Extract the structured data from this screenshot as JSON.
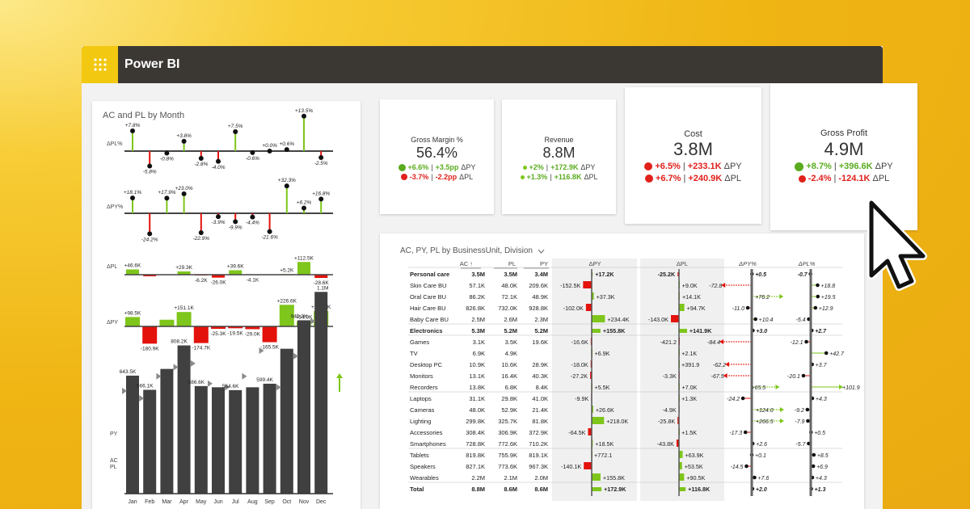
{
  "app": {
    "title": "Power BI",
    "menu_icon": "apps-grid-icon",
    "accent": "#f2c811"
  },
  "left_card": {
    "title": "AC and PL by Month"
  },
  "kpis": [
    {
      "title": "Gross Margin %",
      "value": "56.4%",
      "l1": [
        "+6.6%",
        "+3.5pp",
        "ΔPY"
      ],
      "l2": [
        "-3.7%",
        "-2.2pp",
        "ΔPL"
      ]
    },
    {
      "title": "Revenue",
      "value": "8.8M",
      "l1": [
        "+2%",
        "+172.9K",
        "ΔPY"
      ],
      "l2": [
        "+1.3%",
        "+116.8K",
        "ΔPL"
      ]
    },
    {
      "title": "Cost",
      "value": "3.8M",
      "l1": [
        "+6.5%",
        "+233.1K",
        "ΔPY"
      ],
      "l2": [
        "+6.7%",
        "+240.9K",
        "ΔPL"
      ]
    },
    {
      "title": "Gross Profit",
      "value": "4.9M",
      "l1": [
        "+8.7%",
        "+396.6K",
        "ΔPY"
      ],
      "l2": [
        "-2.4%",
        "-124.1K",
        "ΔPL"
      ]
    }
  ],
  "table": {
    "title": "AC, PY, PL by BusinessUnit, Division",
    "chevron": "chevron-down-icon",
    "headers": [
      "AC ↑",
      "PL",
      "PY",
      "ΔPY",
      "ΔPL",
      "ΔPY%",
      "ΔPL%"
    ],
    "rows": [
      {
        "n": "Personal care",
        "b": true,
        "ac": "3.5M",
        "pl": "3.5M",
        "py": "3.4M",
        "dpy": "+17.2K",
        "dpl": "-25.2K",
        "ppy": "+0.5",
        "ppl": "-0.7"
      },
      {
        "n": "Skin Care BU",
        "ac": "57.1K",
        "pl": "48.0K",
        "py": "209.6K",
        "dpy": "-152.5K",
        "dpl": "+9.0K",
        "ppy": "-72.8",
        "ppl": "+18.8"
      },
      {
        "n": "Oral Care BU",
        "ac": "86.2K",
        "pl": "72.1K",
        "py": "48.9K",
        "dpy": "+37.3K",
        "dpl": "+14.1K",
        "ppy": "+76.2",
        "ppl": "+19.5"
      },
      {
        "n": "Hair Care BU",
        "ac": "826.8K",
        "pl": "732.0K",
        "py": "928.8K",
        "dpy": "-102.0K",
        "dpl": "+94.7K",
        "ppy": "-11.0",
        "ppl": "+12.9"
      },
      {
        "n": "Baby Care BU",
        "ac": "2.5M",
        "pl": "2.6M",
        "py": "2.3M",
        "dpy": "+234.4K",
        "dpl": "-143.0K",
        "ppy": "+10.4",
        "ppl": "-5.4"
      },
      {
        "n": "Electronics",
        "b": true,
        "ac": "5.3M",
        "pl": "5.2M",
        "py": "5.2M",
        "dpy": "+155.8K",
        "dpl": "+141.9K",
        "ppy": "+3.0",
        "ppl": "+2.7"
      },
      {
        "n": "Games",
        "ac": "3.1K",
        "pl": "3.5K",
        "py": "19.6K",
        "dpy": "-16.6K",
        "dpl": "-421.2",
        "ppy": "-84.4",
        "ppl": "-12.1"
      },
      {
        "n": "TV",
        "ac": "6.9K",
        "pl": "4.9K",
        "py": "",
        "dpy": "+6.9K",
        "dpl": "+2.1K",
        "ppy": "",
        "ppl": "+42.7"
      },
      {
        "n": "Desktop PC",
        "ac": "10.9K",
        "pl": "10.6K",
        "py": "28.9K",
        "dpy": "-18.0K",
        "dpl": "+391.9",
        "ppy": "-62.2",
        "ppl": "+3.7"
      },
      {
        "n": "Monitors",
        "ac": "13.1K",
        "pl": "16.4K",
        "py": "40.3K",
        "dpy": "-27.2K",
        "dpl": "-3.3K",
        "ppy": "-67.5",
        "ppl": "-20.1"
      },
      {
        "n": "Recorders",
        "ac": "13.8K",
        "pl": "6.8K",
        "py": "8.4K",
        "dpy": "+5.5K",
        "dpl": "+7.0K",
        "ppy": "+65.5",
        "ppl": "+101.9"
      },
      {
        "n": "Laptops",
        "ac": "31.1K",
        "pl": "29.8K",
        "py": "41.0K",
        "dpy": "-9.9K",
        "dpl": "+1.3K",
        "ppy": "-24.2",
        "ppl": "+4.3"
      },
      {
        "n": "Cameras",
        "ac": "48.0K",
        "pl": "52.9K",
        "py": "21.4K",
        "dpy": "+26.6K",
        "dpl": "-4.9K",
        "ppy": "+124.0",
        "ppl": "-9.2"
      },
      {
        "n": "Lighting",
        "ac": "299.8K",
        "pl": "325.7K",
        "py": "81.8K",
        "dpy": "+218.0K",
        "dpl": "-25.8K",
        "ppy": "+266.5",
        "ppl": "-7.9"
      },
      {
        "n": "Accessories",
        "ac": "308.4K",
        "pl": "306.9K",
        "py": "372.9K",
        "dpy": "-64.5K",
        "dpl": "+1.5K",
        "ppy": "-17.3",
        "ppl": "+0.5"
      },
      {
        "n": "Smartphones",
        "ac": "728.8K",
        "pl": "772.6K",
        "py": "710.2K",
        "dpy": "+18.5K",
        "dpl": "-43.8K",
        "ppy": "+2.6",
        "ppl": "-5.7"
      },
      {
        "n": "Tablets",
        "ac": "819.8K",
        "pl": "755.9K",
        "py": "819.1K",
        "dpy": "+772.1",
        "dpl": "+63.9K",
        "ppy": "+0.1",
        "ppl": "+8.5"
      },
      {
        "n": "Speakers",
        "ac": "827.1K",
        "pl": "773.6K",
        "py": "967.3K",
        "dpy": "-140.1K",
        "dpl": "+53.5K",
        "ppy": "-14.5",
        "ppl": "+6.9"
      },
      {
        "n": "Wearables",
        "ac": "2.2M",
        "pl": "2.1M",
        "py": "2.0M",
        "dpy": "+155.8K",
        "dpl": "+90.5K",
        "ppy": "+7.6",
        "ppl": "+4.3"
      },
      {
        "n": "Total",
        "b": true,
        "ac": "8.8M",
        "pl": "8.6M",
        "py": "8.6M",
        "dpy": "+172.9K",
        "dpl": "+116.8K",
        "ppy": "+2.0",
        "ppl": "+1.3"
      }
    ]
  },
  "chart_data": [
    {
      "type": "lollipop",
      "ylabel": "ΔPL%",
      "categories": [
        "Jan",
        "Feb",
        "Mar",
        "Apr",
        "May",
        "Jun",
        "Jul",
        "Aug",
        "Sep",
        "Oct",
        "Nov",
        "Dec"
      ],
      "labels": [
        "+7.8%",
        "-5.8%",
        "-0.8%",
        "+3.8%",
        "-2.8%",
        "-4.0%",
        "+7.5%",
        "-0.6%",
        "+0.0%",
        "+0.6%",
        "+13.5%",
        "-2.5%"
      ],
      "values": [
        7.8,
        -5.8,
        -0.8,
        3.8,
        -2.8,
        -4.0,
        7.5,
        -0.6,
        0.0,
        0.6,
        13.5,
        -2.5
      ]
    },
    {
      "type": "lollipop",
      "ylabel": "ΔPY%",
      "labels": [
        "+18.1%",
        "-24.2%",
        "+17.9%",
        "+23.0%",
        "-22.9%",
        "-3.9%",
        "-9.9%",
        "-4.4%",
        "-21.6%",
        "+32.3%",
        "+6.2%",
        "+16.8%"
      ],
      "values": [
        18.1,
        -24.2,
        17.9,
        23.0,
        -22.9,
        -3.9,
        -9.9,
        -4.4,
        -21.6,
        32.3,
        6.2,
        16.8
      ]
    },
    {
      "type": "bar",
      "ylabel": "ΔPL",
      "labels": [
        "+46.6K",
        "",
        "",
        "+29.3K",
        "-6.2K",
        "-26.0K",
        "+39.6K",
        "-4.1K",
        "",
        "+5.2K",
        "+112.5K",
        "-28.6K"
      ],
      "values": [
        46.6,
        -14,
        0,
        29.3,
        -6.2,
        -26.0,
        39.6,
        -4.1,
        0,
        5.2,
        112.5,
        -28.6
      ]
    },
    {
      "type": "bar",
      "ylabel": "ΔPY",
      "labels": [
        "+98.5K",
        "-180.9K",
        "",
        "+151.1K",
        "-174.7K",
        "-25.3K",
        "-19.5K",
        "-29.0K",
        "-165.5K",
        "+226.6K",
        "+54.9K",
        "+161.0K"
      ],
      "values": [
        98.5,
        -180.9,
        70,
        151.1,
        -174.7,
        -25.3,
        -19.5,
        -29.0,
        -165.5,
        226.6,
        54.9,
        161.0
      ]
    },
    {
      "type": "bar",
      "legend": [
        "PY",
        "AC",
        "PL"
      ],
      "categories": [
        "Jan",
        "Feb",
        "Mar",
        "Apr",
        "May",
        "Jun",
        "Jul",
        "Aug",
        "Sep",
        "Oct",
        "Nov",
        "Dec"
      ],
      "labels": [
        "643.5K",
        "566.1K",
        "",
        "808.2K",
        "586.6K",
        "",
        "564.6K",
        "",
        "599.4K",
        "",
        "945.3K",
        "1.1M"
      ],
      "ac": [
        643.5,
        566.1,
        680,
        808.2,
        586.6,
        580,
        564.6,
        580,
        599.4,
        790,
        945.3,
        1100
      ],
      "py": [
        560,
        520,
        640,
        690,
        710,
        600,
        580,
        640,
        780,
        580,
        750,
        940
      ]
    }
  ],
  "colors": {
    "pos": "#7ec61b",
    "neg": "#e3120b",
    "bar": "#404040",
    "py": "#8a8a8a"
  }
}
